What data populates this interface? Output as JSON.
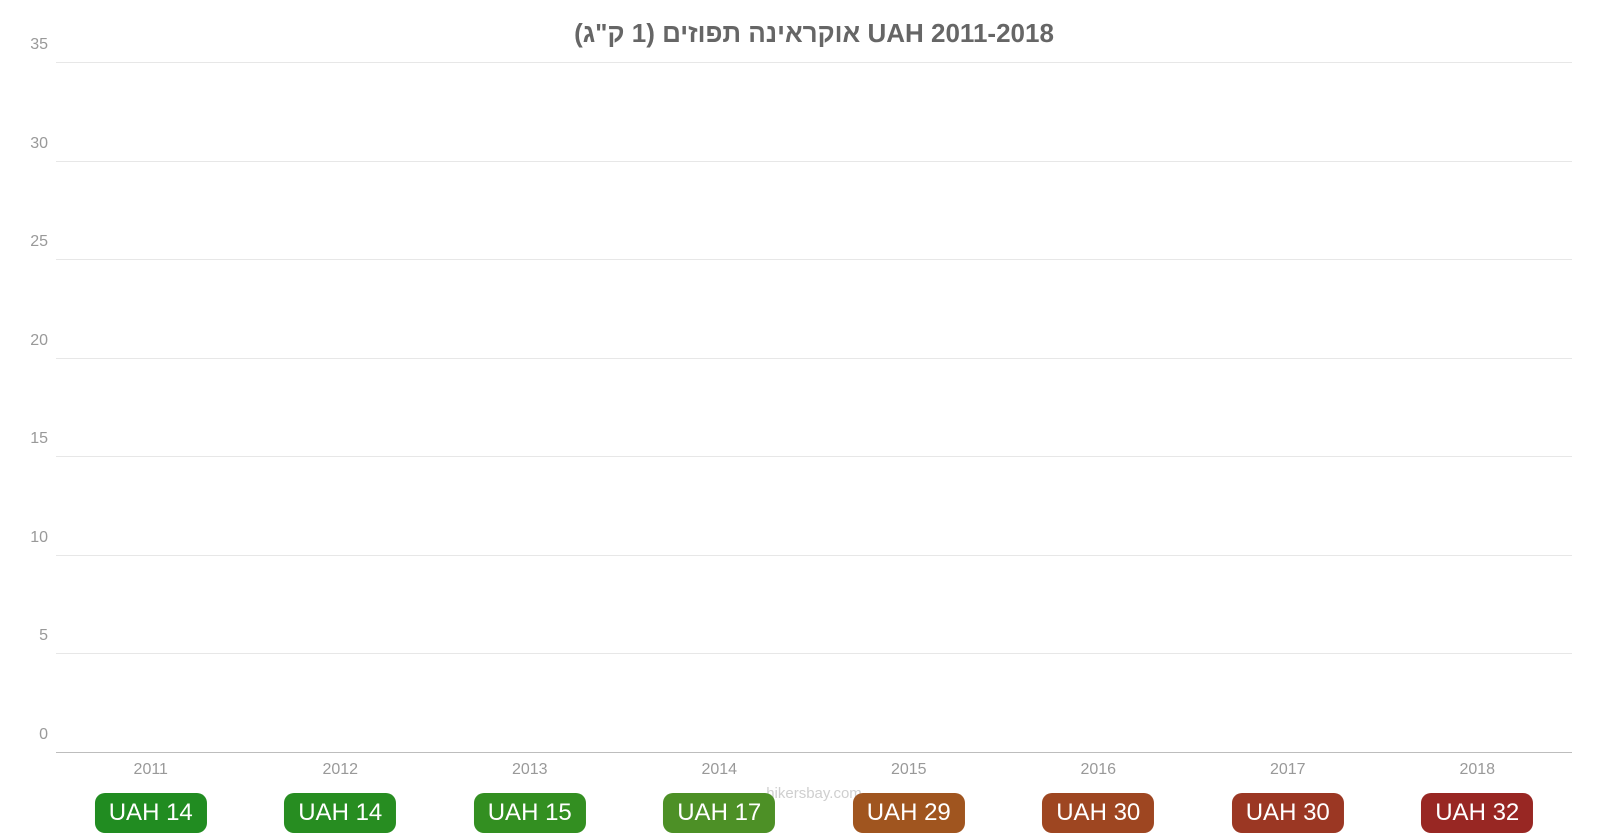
{
  "chart": {
    "type": "bar",
    "title": "אוקראינה תפוזים (1 ק\"ג) UAH 2011-2018",
    "title_fontsize": 26,
    "title_color": "#666666",
    "background_color": "#ffffff",
    "grid_color": "#e7e7e7",
    "axis_label_color": "#999999",
    "ylim": [
      0,
      35
    ],
    "ytick_step": 5,
    "y_ticks": [
      0,
      5,
      10,
      15,
      20,
      25,
      30,
      35
    ],
    "categories": [
      "2011",
      "2012",
      "2013",
      "2014",
      "2015",
      "2016",
      "2017",
      "2018"
    ],
    "values": [
      13.7,
      13.9,
      14.5,
      16.8,
      29.0,
      30.3,
      29.9,
      31.7
    ],
    "value_labels": [
      "UAH 14",
      "UAH 14",
      "UAH 15",
      "UAH 17",
      "UAH 29",
      "UAH 30",
      "UAH 30",
      "UAH 32"
    ],
    "bar_colors": [
      "#2fc92f",
      "#38cb2f",
      "#4acc2f",
      "#6fce37",
      "#e67a2d",
      "#e26430",
      "#de4f32",
      "#da3832"
    ],
    "value_badge_colors": [
      "#218c21",
      "#278d21",
      "#338f21",
      "#4d9026",
      "#a0551f",
      "#9e4621",
      "#9b3723",
      "#982723"
    ],
    "value_badge_fontsize": 24,
    "value_badge_text_color": "#ffffff",
    "value_badge_radius": 10,
    "value_badge_y_offset": 40,
    "bar_width": 0.93,
    "label_fontsize": 16
  },
  "footer": "hikersbay.com"
}
